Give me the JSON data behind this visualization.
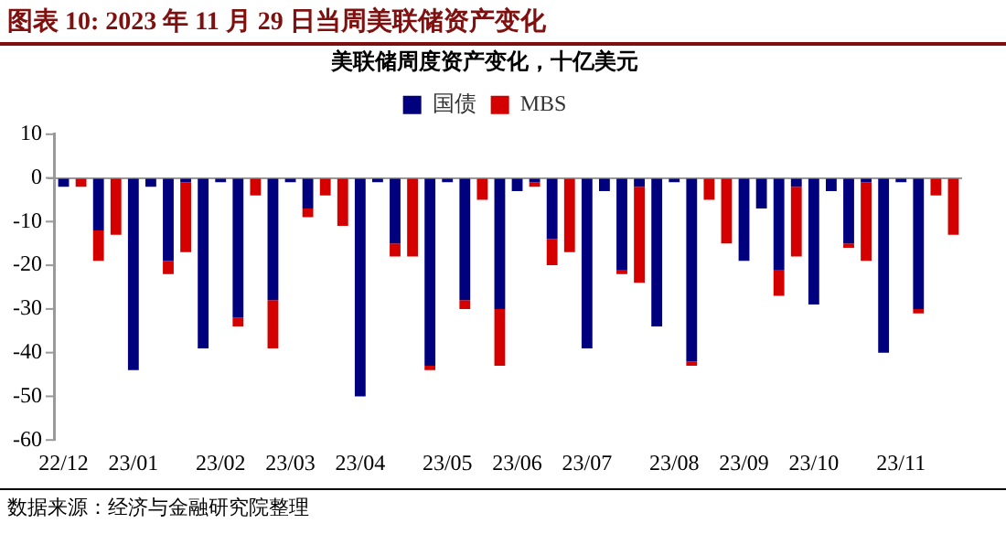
{
  "chart_data": {
    "type": "bar",
    "title": "图表 10:  2023 年 11 月 29 日当周美联储资产变化",
    "subtitle": "美联储周度资产变化，十亿美元",
    "stacked": true,
    "legend": "top",
    "categories": [
      "22/12",
      null,
      null,
      null,
      "23/01",
      null,
      null,
      null,
      null,
      "23/02",
      null,
      null,
      null,
      "23/03",
      null,
      null,
      null,
      "23/04",
      null,
      null,
      null,
      null,
      "23/05",
      null,
      null,
      null,
      "23/06",
      null,
      null,
      null,
      "23/07",
      null,
      null,
      null,
      null,
      "23/08",
      null,
      null,
      null,
      "23/09",
      null,
      null,
      null,
      "23/10",
      null,
      null,
      null,
      null,
      "23/11",
      null,
      null,
      null
    ],
    "series": [
      {
        "name": "国债",
        "color": "#00007f",
        "values": [
          -2,
          0,
          -12,
          0,
          -44,
          -2,
          -19,
          -1,
          -39,
          -1,
          -32,
          0,
          -28,
          -1,
          -7,
          0,
          0,
          -50,
          -1,
          -15,
          0,
          -43,
          -1,
          -28,
          0,
          -30,
          -3,
          -1,
          -14,
          0,
          -39,
          -3,
          -21,
          -2,
          -34,
          -1,
          -42,
          0,
          0,
          -19,
          -7,
          -21,
          -2,
          -29,
          -3,
          -15,
          -1,
          -40,
          -1,
          -30,
          0,
          0
        ]
      },
      {
        "name": "MBS",
        "color": "#d40000",
        "values": [
          0,
          -2,
          -7,
          -13,
          0,
          0,
          -3,
          -16,
          0,
          0,
          -2,
          -4,
          -11,
          0,
          -2,
          -4,
          -11,
          0,
          0,
          -3,
          -18,
          -1,
          0,
          -2,
          -5,
          -13,
          0,
          -1,
          -6,
          -17,
          0,
          0,
          -1,
          -22,
          0,
          0,
          -1,
          -5,
          -15,
          0,
          0,
          -6,
          -16,
          0,
          0,
          -1,
          -18,
          0,
          0,
          -1,
          -4,
          -13
        ]
      }
    ],
    "ylim": [
      -60,
      10
    ],
    "yticks": [
      10,
      0,
      -10,
      -20,
      -30,
      -40,
      -50,
      -60
    ],
    "annotations": [
      "数据来源：经济与金融研究院整理"
    ]
  }
}
